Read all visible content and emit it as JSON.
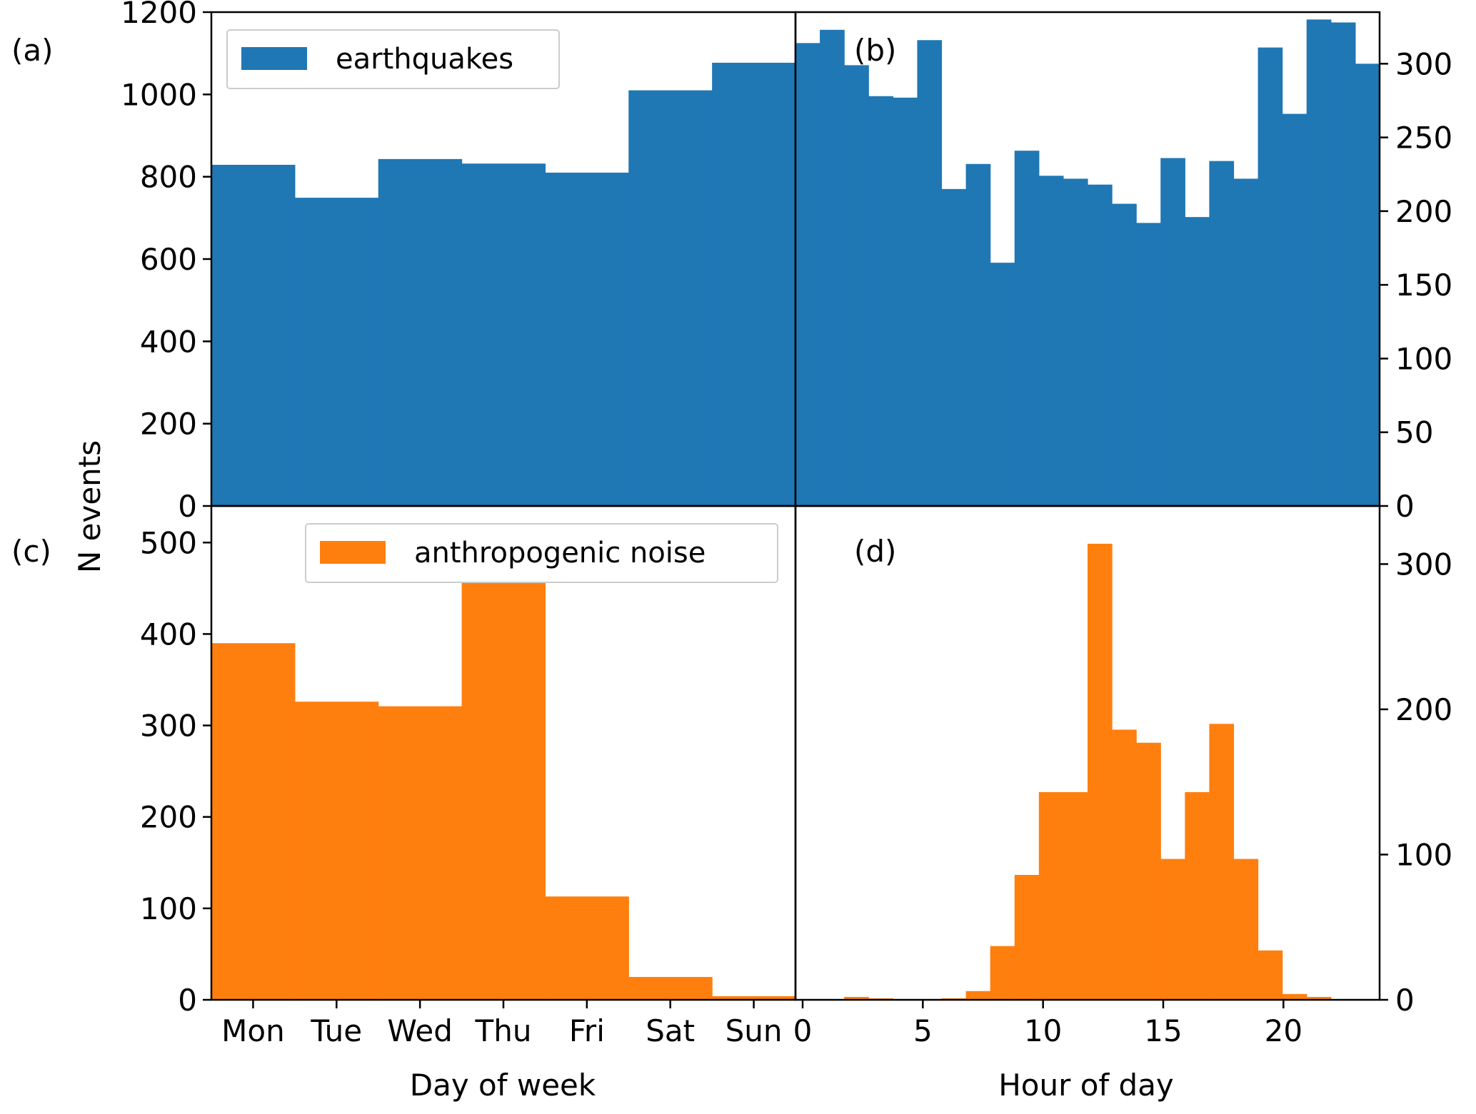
{
  "figure": {
    "ylabel": "N events",
    "xlabel_left": "Day of week",
    "xlabel_right": "Hour of day",
    "colors": {
      "earthquakes": "#1f77b4",
      "noise": "#ff7f0e"
    }
  },
  "legends": {
    "top": {
      "label": "earthquakes",
      "color": "#1f77b4",
      "placement": "upper-left"
    },
    "bottom": {
      "label": "anthropogenic noise",
      "color": "#ff7f0e",
      "placement": "upper-left"
    }
  },
  "chart_data": [
    {
      "panel": "(a)",
      "type": "bar",
      "series": [
        {
          "name": "earthquakes",
          "color": "#1f77b4"
        }
      ],
      "categories": [
        "Mon",
        "Tue",
        "Wed",
        "Thu",
        "Fri",
        "Sat",
        "Sun"
      ],
      "values": [
        829,
        749,
        843,
        832,
        810,
        1010,
        1077
      ],
      "ylim": [
        0,
        1200
      ],
      "yticks": [
        0,
        200,
        400,
        600,
        800,
        1000,
        1200
      ],
      "xticks_shown": false,
      "yaxis_side": "left"
    },
    {
      "panel": "(b)",
      "type": "bar",
      "series": [
        {
          "name": "earthquakes",
          "color": "#1f77b4"
        }
      ],
      "x": [
        0,
        1,
        2,
        3,
        4,
        5,
        6,
        7,
        8,
        9,
        10,
        11,
        12,
        13,
        14,
        15,
        16,
        17,
        18,
        19,
        20,
        21,
        22,
        23
      ],
      "values": [
        314,
        323,
        299,
        278,
        277,
        316,
        215,
        232,
        165,
        241,
        224,
        222,
        218,
        205,
        192,
        236,
        196,
        234,
        222,
        311,
        266,
        330,
        328,
        300
      ],
      "xlim": [
        0,
        24
      ],
      "ylim": [
        0,
        335
      ],
      "yticks": [
        0,
        50,
        100,
        150,
        200,
        250,
        300
      ],
      "xticks_shown": false,
      "yaxis_side": "right"
    },
    {
      "panel": "(c)",
      "type": "bar",
      "series": [
        {
          "name": "anthropogenic noise",
          "color": "#ff7f0e"
        }
      ],
      "categories": [
        "Mon",
        "Tue",
        "Wed",
        "Thu",
        "Fri",
        "Sat",
        "Sun"
      ],
      "values": [
        390,
        326,
        321,
        481,
        113,
        25,
        4
      ],
      "xticks": [
        "Mon",
        "Tue",
        "Wed",
        "Thu",
        "Fri",
        "Sat",
        "Sun"
      ],
      "ylim": [
        0,
        540
      ],
      "yticks": [
        0,
        100,
        200,
        300,
        400,
        500
      ],
      "yaxis_side": "left"
    },
    {
      "panel": "(d)",
      "type": "bar",
      "series": [
        {
          "name": "anthropogenic noise",
          "color": "#ff7f0e"
        }
      ],
      "x": [
        0,
        1,
        2,
        3,
        4,
        5,
        6,
        7,
        8,
        9,
        10,
        11,
        12,
        13,
        14,
        15,
        16,
        17,
        18,
        19,
        20,
        21,
        22,
        23
      ],
      "values": [
        0,
        0,
        2,
        1,
        0,
        0,
        1,
        6,
        37,
        86,
        143,
        143,
        314,
        186,
        177,
        97,
        143,
        190,
        97,
        34,
        4,
        2,
        0,
        0
      ],
      "xlim": [
        0,
        24
      ],
      "ylim": [
        0,
        340
      ],
      "xticks": [
        0,
        5,
        10,
        15,
        20
      ],
      "yticks": [
        0,
        100,
        200,
        300
      ],
      "yaxis_side": "right"
    }
  ]
}
